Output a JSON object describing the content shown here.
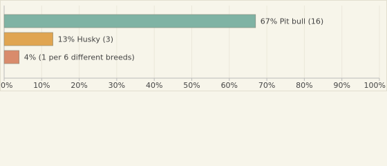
{
  "chart_data": {
    "type": "bar",
    "orientation": "horizontal",
    "values": [
      67,
      13,
      4
    ],
    "value_labels": [
      "67% Pit bull (16)",
      "13% Husky (3)",
      "4% (1 per 6 different breeds)"
    ],
    "colors": [
      "#7fb3a4",
      "#e0a551",
      "#d98b6c"
    ],
    "xlim": [
      0,
      100
    ],
    "xticks": [
      {
        "value": 0,
        "label": "0%"
      },
      {
        "value": 10,
        "label": "10%"
      },
      {
        "value": 20,
        "label": "20%"
      },
      {
        "value": 30,
        "label": "30%"
      },
      {
        "value": 40,
        "label": "40%"
      },
      {
        "value": 50,
        "label": "50%"
      },
      {
        "value": 60,
        "label": "60%"
      },
      {
        "value": 70,
        "label": "70%"
      },
      {
        "value": 80,
        "label": "80%"
      },
      {
        "value": 90,
        "label": "90%"
      },
      {
        "value": 100,
        "label": "100%"
      }
    ],
    "grid": true
  }
}
